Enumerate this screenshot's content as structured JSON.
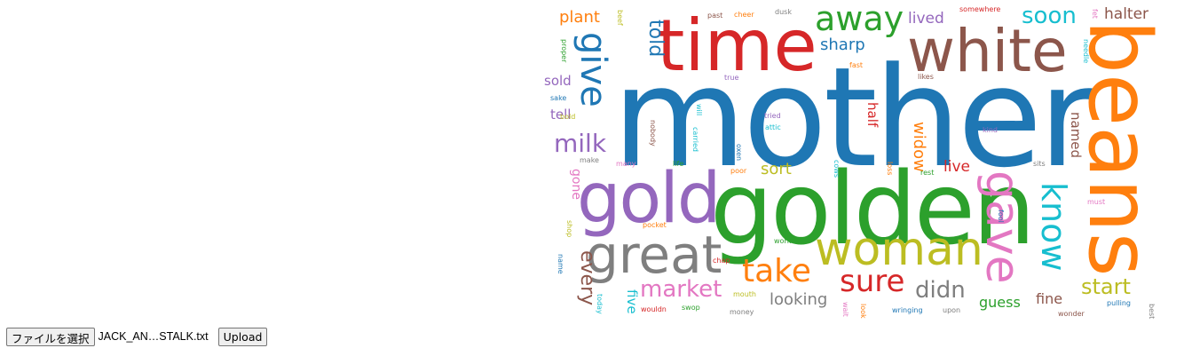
{
  "word_cloud": {
    "words": [
      {
        "text": "mother",
        "color": "#1f77b4"
      },
      {
        "text": "golden",
        "color": "#2ca02c"
      },
      {
        "text": "beans",
        "color": "#ff7f0e"
      },
      {
        "text": "time",
        "color": "#d62728"
      },
      {
        "text": "white",
        "color": "#8c564b"
      },
      {
        "text": "gold",
        "color": "#9467bd"
      },
      {
        "text": "great",
        "color": "#7f7f7f"
      },
      {
        "text": "woman",
        "color": "#bcbd22"
      },
      {
        "text": "gave",
        "color": "#e377c2"
      },
      {
        "text": "away",
        "color": "#2ca02c"
      },
      {
        "text": "give",
        "color": "#1f77b4"
      },
      {
        "text": "know",
        "color": "#17becf"
      },
      {
        "text": "take",
        "color": "#ff7f0e"
      },
      {
        "text": "sure",
        "color": "#d62728"
      },
      {
        "text": "soon",
        "color": "#17becf"
      },
      {
        "text": "market",
        "color": "#e377c2"
      },
      {
        "text": "milk",
        "color": "#9467bd"
      },
      {
        "text": "didn",
        "color": "#7f7f7f"
      },
      {
        "text": "start",
        "color": "#bcbd22"
      },
      {
        "text": "told",
        "color": "#1f77b4"
      },
      {
        "text": "every",
        "color": "#8c564b"
      },
      {
        "text": "halter",
        "color": "#8c564b"
      },
      {
        "text": "sharp",
        "color": "#1f77b4"
      },
      {
        "text": "lived",
        "color": "#9467bd"
      },
      {
        "text": "plant",
        "color": "#ff7f0e"
      },
      {
        "text": "widow",
        "color": "#ff7f0e"
      },
      {
        "text": "sort",
        "color": "#bcbd22"
      },
      {
        "text": "looking",
        "color": "#7f7f7f"
      },
      {
        "text": "live",
        "color": "#d62728"
      },
      {
        "text": "named",
        "color": "#8c564b"
      },
      {
        "text": "fine",
        "color": "#8c564b"
      },
      {
        "text": "guess",
        "color": "#2ca02c"
      },
      {
        "text": "half",
        "color": "#d62728"
      },
      {
        "text": "five",
        "color": "#17becf"
      },
      {
        "text": "gone",
        "color": "#e377c2"
      },
      {
        "text": "sold",
        "color": "#9467bd"
      },
      {
        "text": "tell",
        "color": "#9467bd"
      },
      {
        "text": "proper",
        "color": "#2ca02c"
      },
      {
        "text": "beef",
        "color": "#bcbd22"
      },
      {
        "text": "past",
        "color": "#8c564b"
      },
      {
        "text": "cheer",
        "color": "#ff7f0e"
      },
      {
        "text": "dusk",
        "color": "#7f7f7f"
      },
      {
        "text": "somewhere",
        "color": "#d62728"
      },
      {
        "text": "fet",
        "color": "#e377c2"
      },
      {
        "text": "needle",
        "color": "#17becf"
      },
      {
        "text": "fast",
        "color": "#ff7f0e"
      },
      {
        "text": "true",
        "color": "#9467bd"
      },
      {
        "text": "likes",
        "color": "#8c564b"
      },
      {
        "text": "sake",
        "color": "#1f77b4"
      },
      {
        "text": "bold",
        "color": "#bcbd22"
      },
      {
        "text": "will",
        "color": "#17becf"
      },
      {
        "text": "nobody",
        "color": "#8c564b"
      },
      {
        "text": "carried",
        "color": "#17becf"
      },
      {
        "text": "tried",
        "color": "#9467bd"
      },
      {
        "text": "attic",
        "color": "#17becf"
      },
      {
        "text": "kind",
        "color": "#9467bd"
      },
      {
        "text": "make",
        "color": "#7f7f7f"
      },
      {
        "text": "many",
        "color": "#e377c2"
      },
      {
        "text": "life",
        "color": "#2ca02c"
      },
      {
        "text": "oxen",
        "color": "#1f77b4"
      },
      {
        "text": "poor",
        "color": "#ff7f0e"
      },
      {
        "text": "cows",
        "color": "#17becf"
      },
      {
        "text": "loss",
        "color": "#ff7f0e"
      },
      {
        "text": "rest",
        "color": "#2ca02c"
      },
      {
        "text": "sits",
        "color": "#7f7f7f"
      },
      {
        "text": "must",
        "color": "#e377c2"
      },
      {
        "text": "fool",
        "color": "#1f77b4"
      },
      {
        "text": "shop",
        "color": "#bcbd22"
      },
      {
        "text": "pocket",
        "color": "#ff7f0e"
      },
      {
        "text": "work",
        "color": "#2ca02c"
      },
      {
        "text": "name",
        "color": "#1f77b4"
      },
      {
        "text": "chap",
        "color": "#d62728"
      },
      {
        "text": "mouth",
        "color": "#bcbd22"
      },
      {
        "text": "today",
        "color": "#17becf"
      },
      {
        "text": "wouldn",
        "color": "#d62728"
      },
      {
        "text": "swop",
        "color": "#2ca02c"
      },
      {
        "text": "money",
        "color": "#7f7f7f"
      },
      {
        "text": "wait",
        "color": "#e377c2"
      },
      {
        "text": "look",
        "color": "#ff7f0e"
      },
      {
        "text": "wringing",
        "color": "#1f77b4"
      },
      {
        "text": "upon",
        "color": "#7f7f7f"
      },
      {
        "text": "wonder",
        "color": "#8c564b"
      },
      {
        "text": "pulling",
        "color": "#1f77b4"
      },
      {
        "text": "best",
        "color": "#7f7f7f"
      }
    ]
  },
  "upload_form": {
    "choose_file_label": "ファイルを選択",
    "file_name": "JACK_AN…STALK.txt",
    "upload_label": "Upload"
  }
}
